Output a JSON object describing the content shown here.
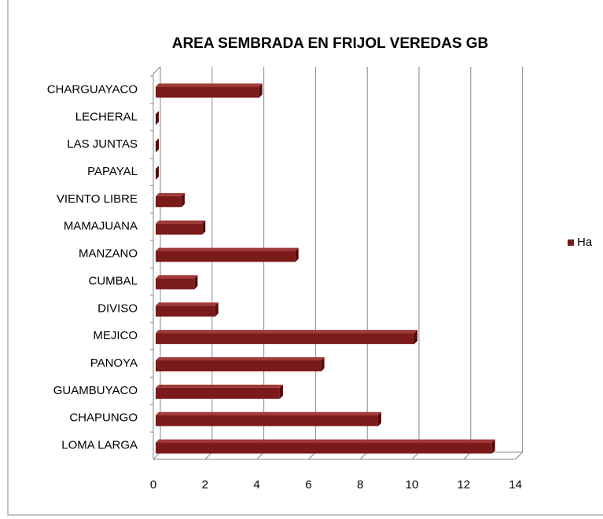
{
  "chart_data": {
    "type": "bar",
    "orientation": "horizontal",
    "title": "AREA SEMBRADA EN FRIJOL VEREDAS GB",
    "categories": [
      "CHARGUAYACO",
      "LECHERAL",
      "LAS JUNTAS",
      "PAPAYAL",
      "VIENTO LIBRE",
      "MAMAJUANA",
      "MANZANO",
      "CUMBAL",
      "DIVISO",
      "MEJICO",
      "PANOYA",
      "GUAMBUYACO",
      "CHAPUNGO",
      "LOMA LARGA"
    ],
    "series": [
      {
        "name": "Ha",
        "color": "#7b1a1a",
        "values": [
          4,
          0,
          0,
          0,
          1,
          1.8,
          5.4,
          1.5,
          2.3,
          10,
          6.4,
          4.8,
          8.6,
          13
        ]
      }
    ],
    "xlim": [
      0,
      14
    ],
    "xticks": [
      0,
      2,
      4,
      6,
      8,
      10,
      12,
      14
    ],
    "grid": true,
    "legend": "right"
  }
}
